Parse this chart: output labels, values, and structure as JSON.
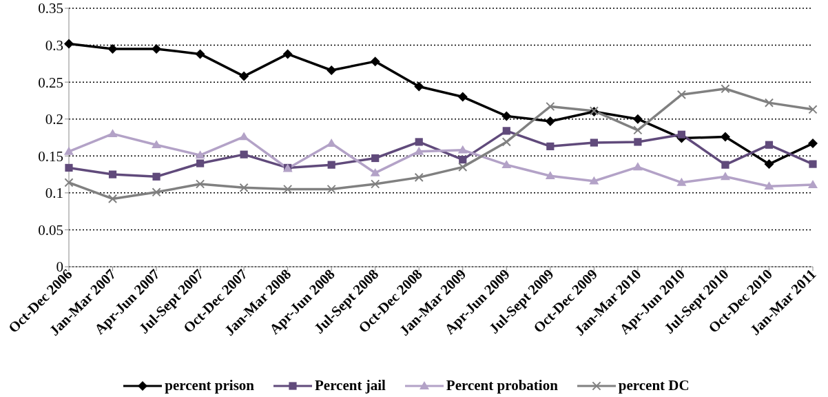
{
  "chart_data": {
    "type": "line",
    "categories": [
      "Oct-Dec 2006",
      "Jan-Mar 2007",
      "Apr-Jun 2007",
      "Jul-Sept 2007",
      "Oct-Dec 2007",
      "Jan-Mar 2008",
      "Apr-Jun 2008",
      "Jul-Sept 2008",
      "Oct-Dec 2008",
      "Jan-Mar 2009",
      "Apr-Jun 2009",
      "Jul-Sept 2009",
      "Oct-Dec 2009",
      "Jan-Mar 2010",
      "Apr-Jun 2010",
      "Jul-Sept 2010",
      "Oct-Dec 2010",
      "Jan-Mar 2011"
    ],
    "series": [
      {
        "name": "percent prison",
        "color": "#000000",
        "marker": "diamond",
        "values": [
          0.302,
          0.295,
          0.295,
          0.288,
          0.258,
          0.288,
          0.266,
          0.278,
          0.244,
          0.23,
          0.204,
          0.197,
          0.21,
          0.2,
          0.174,
          0.176,
          0.139,
          0.167
        ]
      },
      {
        "name": "Percent jail",
        "color": "#604a7b",
        "marker": "square",
        "values": [
          0.134,
          0.125,
          0.122,
          0.14,
          0.152,
          0.134,
          0.138,
          0.147,
          0.169,
          0.145,
          0.184,
          0.163,
          0.168,
          0.169,
          0.179,
          0.138,
          0.165,
          0.139
        ]
      },
      {
        "name": "Percent probation",
        "color": "#b3a2c7",
        "marker": "triangle",
        "values": [
          0.156,
          0.18,
          0.165,
          0.151,
          0.176,
          0.133,
          0.167,
          0.127,
          0.156,
          0.158,
          0.138,
          0.123,
          0.116,
          0.135,
          0.114,
          0.122,
          0.109,
          0.111
        ]
      },
      {
        "name": "percent DC",
        "color": "#808080",
        "marker": "cross",
        "values": [
          0.114,
          0.092,
          0.101,
          0.112,
          0.107,
          0.105,
          0.105,
          0.112,
          0.121,
          0.135,
          0.169,
          0.217,
          0.211,
          0.185,
          0.233,
          0.241,
          0.222,
          0.213
        ]
      }
    ],
    "ylim": [
      0,
      0.35
    ],
    "yticks": [
      0,
      0.05,
      0.1,
      0.15,
      0.2,
      0.25,
      0.3,
      0.35
    ],
    "grid": "y",
    "legend": "bottom",
    "line_style": "solid"
  }
}
